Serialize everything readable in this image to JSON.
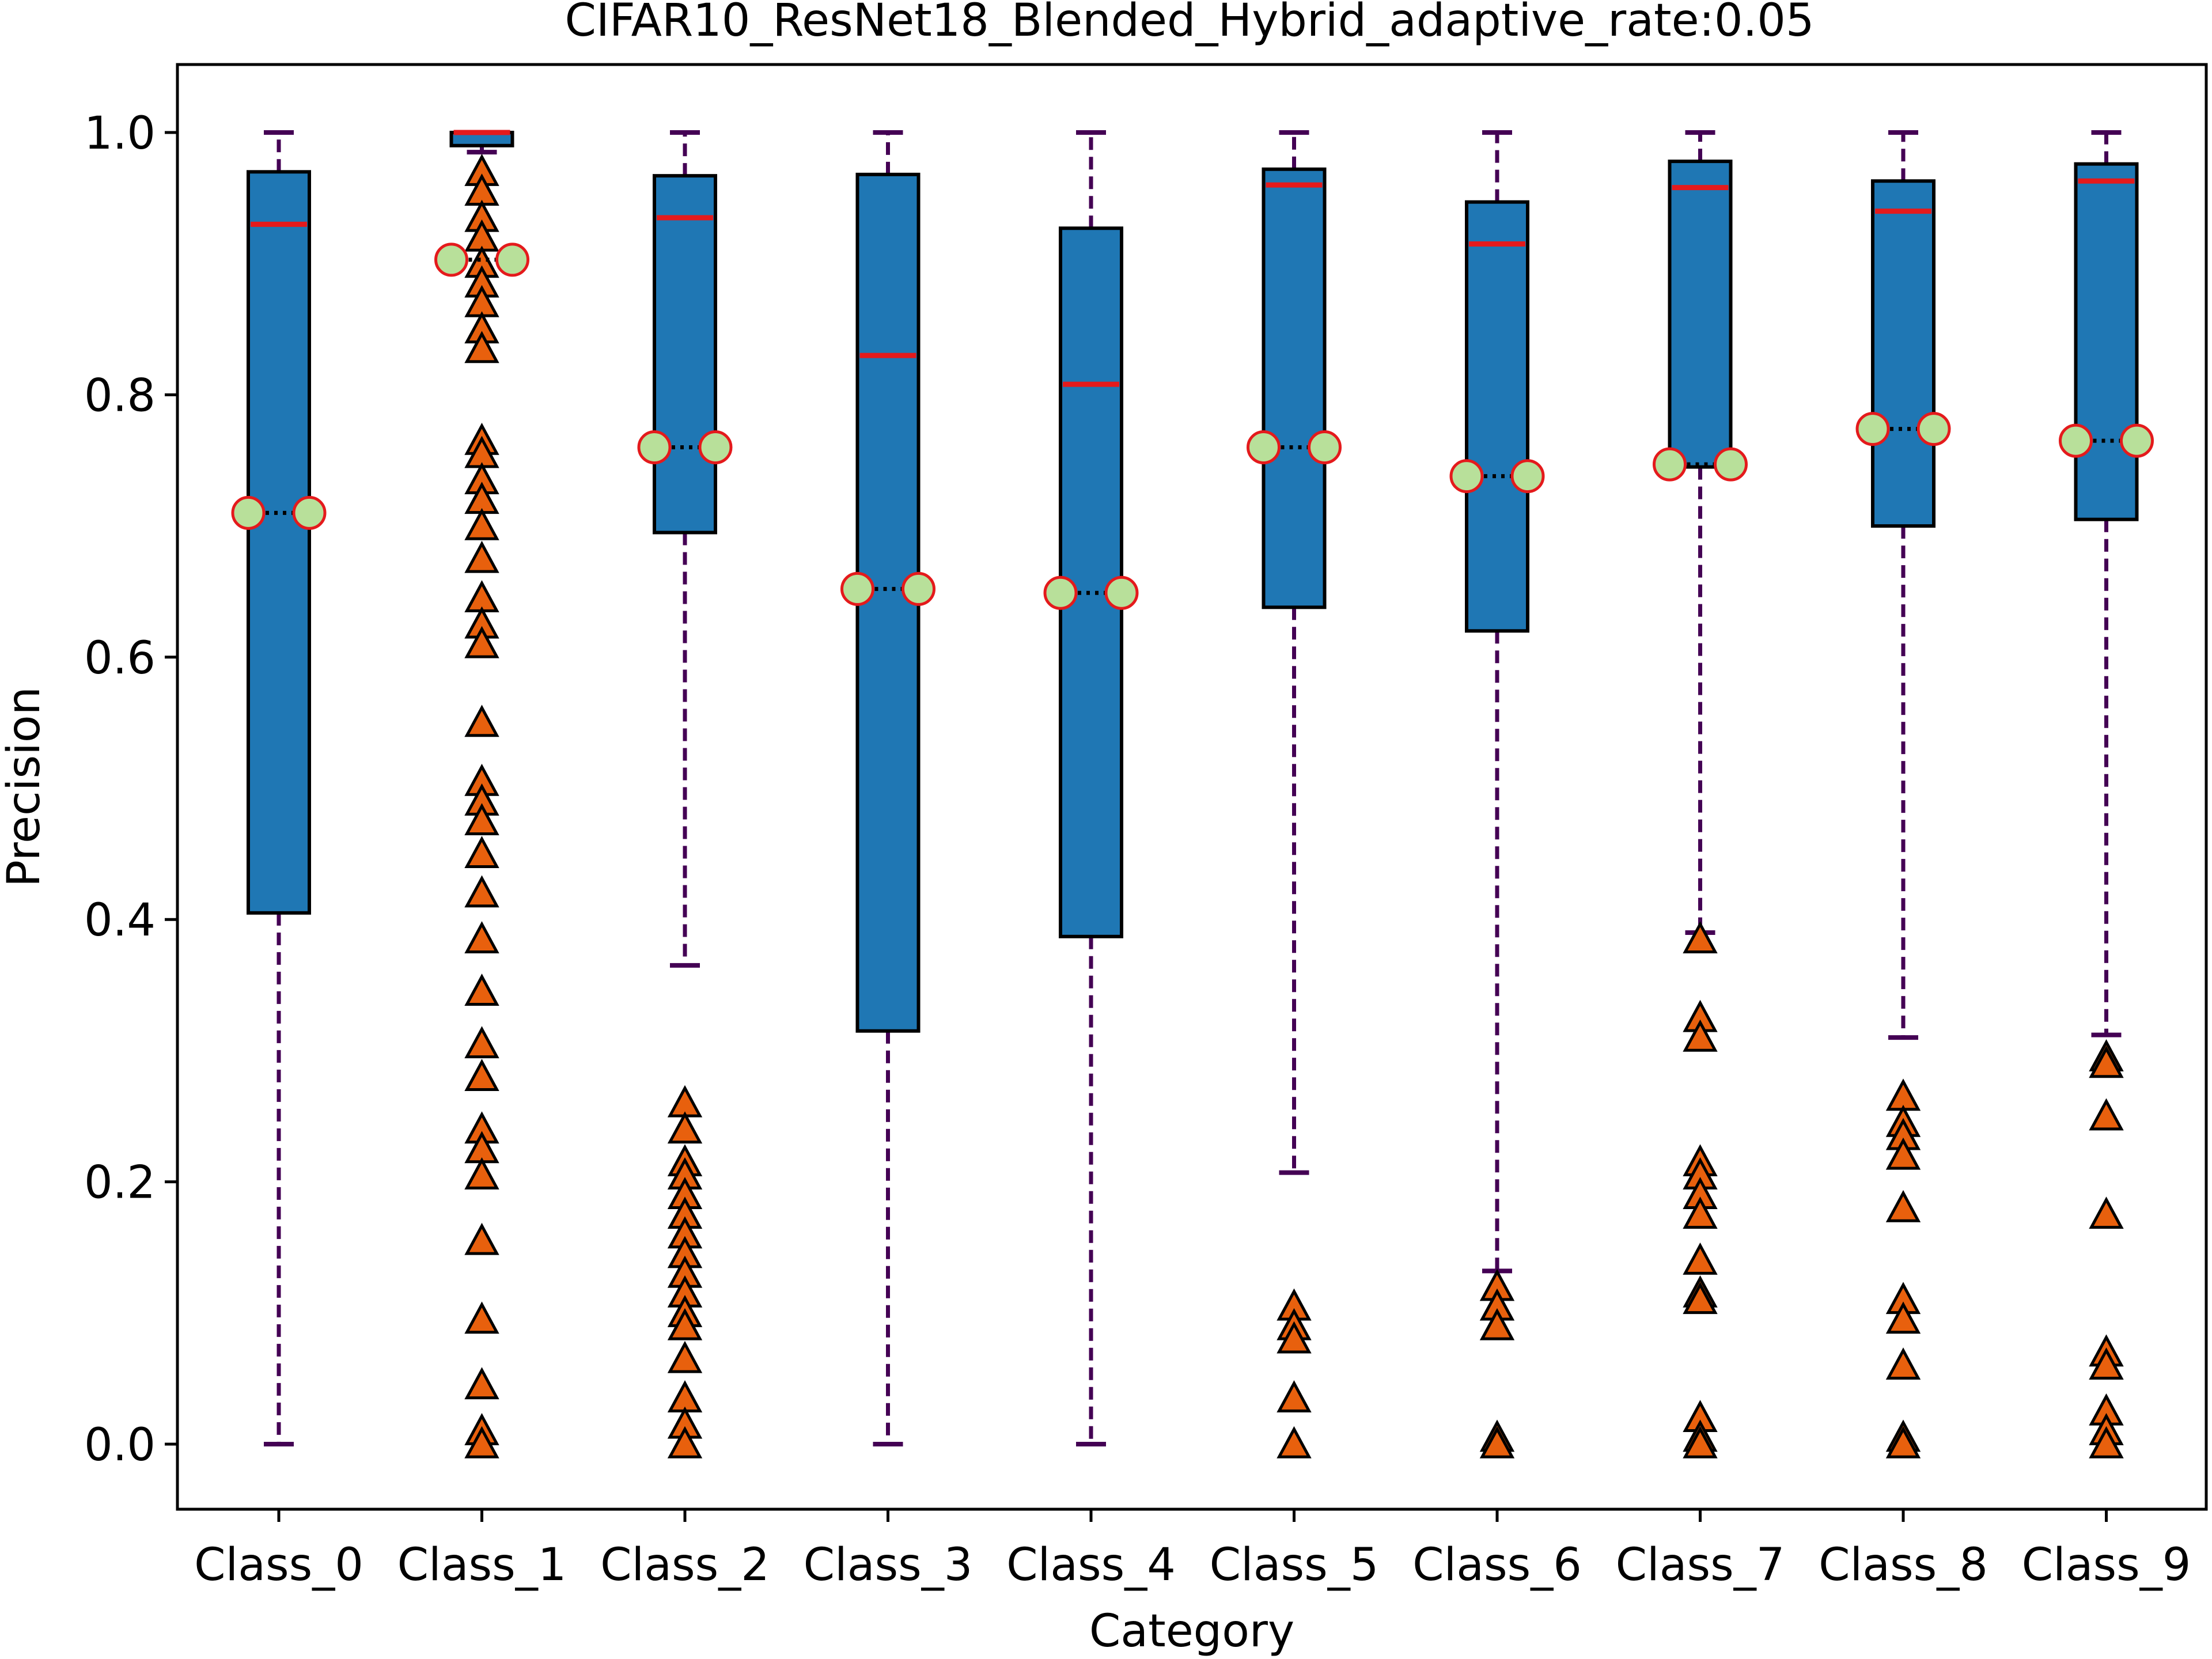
{
  "chart_data": {
    "type": "box",
    "title": "CIFAR10_ResNet18_Blended_Hybrid_adaptive_rate:0.05",
    "xlabel": "Category",
    "ylabel": "Precision",
    "ylim": [
      -0.05,
      1.055
    ],
    "yticks": [
      0.0,
      0.2,
      0.4,
      0.6,
      0.8,
      1.0
    ],
    "ytick_labels": [
      "0.0",
      "0.2",
      "0.4",
      "0.6",
      "0.8",
      "1.0"
    ],
    "grid": false,
    "colors": {
      "box_fill": "#1f77b4",
      "box_edge": "#000000",
      "median": "#e41a1c",
      "whisker": "#440154",
      "mean_fill": "#b8e09a",
      "mean_edge": "#e41a1c",
      "mean_line": "#000000",
      "outlier_fill": "#e8600d",
      "outlier_edge": "#000000"
    },
    "categories": [
      "Class_0",
      "Class_1",
      "Class_2",
      "Class_3",
      "Class_4",
      "Class_5",
      "Class_6",
      "Class_7",
      "Class_8",
      "Class_9"
    ],
    "boxes": [
      {
        "category": "Class_0",
        "whislo": 0.0,
        "q1": 0.405,
        "med": 0.93,
        "q3": 0.97,
        "whishi": 1.0,
        "mean": 0.71,
        "fliers": []
      },
      {
        "category": "Class_1",
        "whislo": 0.985,
        "q1": 0.99,
        "med": 1.0,
        "q3": 1.0,
        "whishi": 1.0,
        "mean": 0.903,
        "fliers": [
          0.97,
          0.955,
          0.935,
          0.92,
          0.9,
          0.885,
          0.87,
          0.85,
          0.835,
          0.765,
          0.755,
          0.735,
          0.72,
          0.7,
          0.675,
          0.645,
          0.625,
          0.61,
          0.55,
          0.505,
          0.49,
          0.475,
          0.45,
          0.42,
          0.385,
          0.345,
          0.305,
          0.28,
          0.24,
          0.225,
          0.205,
          0.155,
          0.095,
          0.045,
          0.01,
          0.0
        ]
      },
      {
        "category": "Class_2",
        "whislo": 0.365,
        "q1": 0.695,
        "med": 0.935,
        "q3": 0.967,
        "whishi": 1.0,
        "mean": 0.76,
        "fliers": [
          0.26,
          0.24,
          0.215,
          0.205,
          0.19,
          0.175,
          0.16,
          0.145,
          0.13,
          0.115,
          0.1,
          0.09,
          0.065,
          0.035,
          0.015,
          0.0
        ]
      },
      {
        "category": "Class_3",
        "whislo": 0.0,
        "q1": 0.315,
        "med": 0.83,
        "q3": 0.968,
        "whishi": 1.0,
        "mean": 0.652,
        "fliers": []
      },
      {
        "category": "Class_4",
        "whislo": 0.0,
        "q1": 0.387,
        "med": 0.808,
        "q3": 0.927,
        "whishi": 1.0,
        "mean": 0.649,
        "fliers": []
      },
      {
        "category": "Class_5",
        "whislo": 0.207,
        "q1": 0.638,
        "med": 0.96,
        "q3": 0.972,
        "whishi": 1.0,
        "mean": 0.76,
        "fliers": [
          0.105,
          0.09,
          0.08,
          0.035,
          0.0
        ]
      },
      {
        "category": "Class_6",
        "whislo": 0.132,
        "q1": 0.62,
        "med": 0.915,
        "q3": 0.947,
        "whishi": 1.0,
        "mean": 0.738,
        "fliers": [
          0.12,
          0.105,
          0.09,
          0.005,
          0.0
        ]
      },
      {
        "category": "Class_7",
        "whislo": 0.39,
        "q1": 0.745,
        "med": 0.958,
        "q3": 0.978,
        "whishi": 1.0,
        "mean": 0.747,
        "fliers": [
          0.385,
          0.325,
          0.31,
          0.215,
          0.205,
          0.19,
          0.175,
          0.14,
          0.115,
          0.11,
          0.02,
          0.005,
          0.0
        ]
      },
      {
        "category": "Class_8",
        "whislo": 0.31,
        "q1": 0.7,
        "med": 0.94,
        "q3": 0.963,
        "whishi": 1.0,
        "mean": 0.774,
        "fliers": [
          0.265,
          0.245,
          0.235,
          0.22,
          0.18,
          0.11,
          0.095,
          0.06,
          0.005,
          0.0
        ]
      },
      {
        "category": "Class_9",
        "whislo": 0.312,
        "q1": 0.705,
        "med": 0.963,
        "q3": 0.976,
        "whishi": 1.0,
        "mean": 0.765,
        "fliers": [
          0.295,
          0.29,
          0.25,
          0.175,
          0.07,
          0.06,
          0.025,
          0.01,
          0.0
        ]
      }
    ]
  }
}
